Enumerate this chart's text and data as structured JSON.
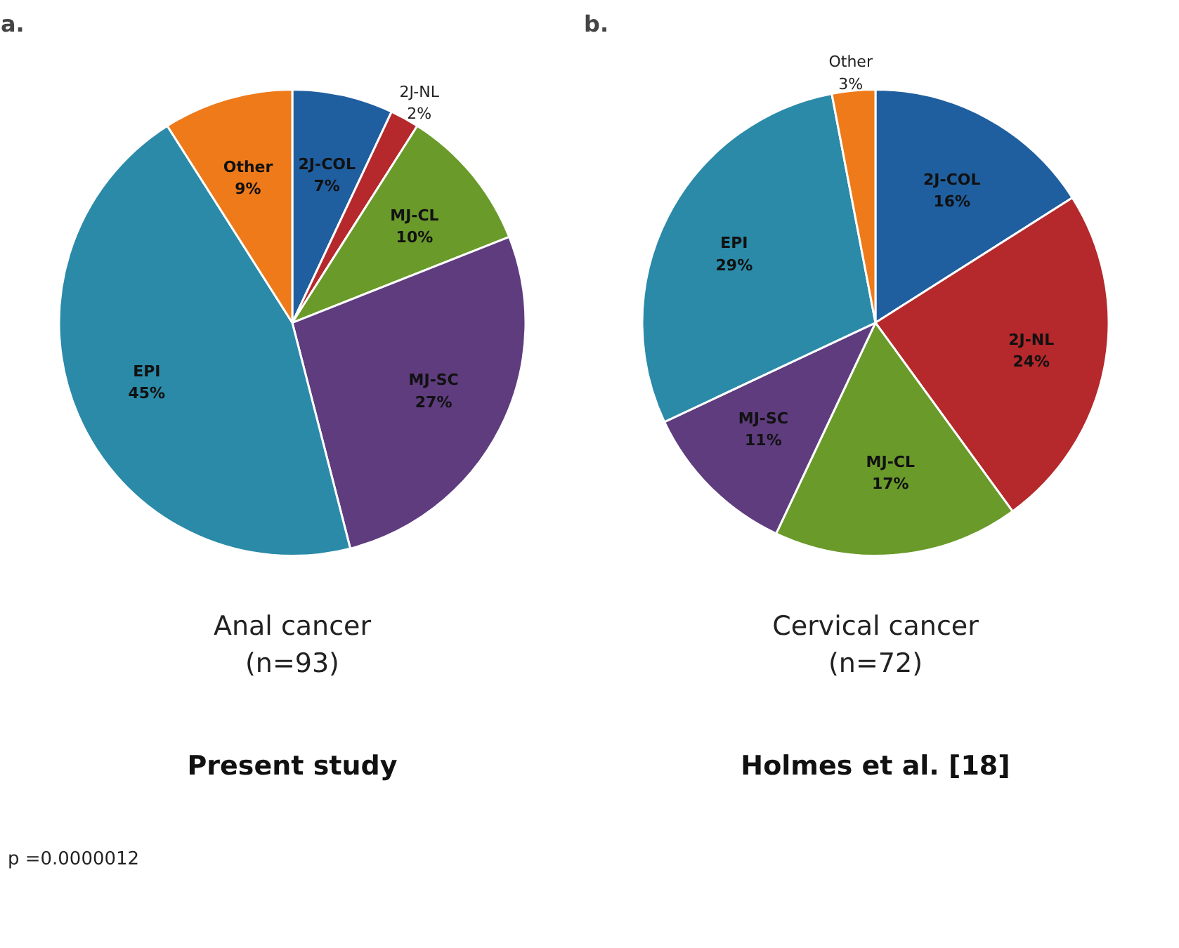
{
  "chart_data": [
    {
      "type": "pie",
      "title": "a.",
      "xlabel": "Anal cancer\n(n=93)",
      "subtitle": "Present study",
      "annotations": [
        "p =0.0000012"
      ],
      "categories": [
        "2J-COL",
        "2J-NL",
        "MJ-CL",
        "MJ-SC",
        "EPI",
        "Other"
      ],
      "values": [
        7,
        2,
        10,
        27,
        45,
        9
      ],
      "value_labels": [
        "7%",
        "2%",
        "10%",
        "27%",
        "45%",
        "9%"
      ],
      "colors": [
        "#1f5fa0",
        "#b5282b",
        "#6a9a2a",
        "#5e3c7e",
        "#2a8aa8",
        "#ef7a1a"
      ]
    },
    {
      "type": "pie",
      "title": "b.",
      "xlabel": "Cervical cancer\n(n=72)",
      "subtitle": "Holmes et al. [18]",
      "categories": [
        "2J-COL",
        "2J-NL",
        "MJ-CL",
        "MJ-SC",
        "EPI",
        "Other"
      ],
      "values": [
        16,
        24,
        17,
        11,
        29,
        3
      ],
      "value_labels": [
        "16%",
        "24%",
        "17%",
        "11%",
        "29%",
        "3%"
      ],
      "colors": [
        "#1f5fa0",
        "#b5282b",
        "#6a9a2a",
        "#5e3c7e",
        "#2a8aa8",
        "#ef7a1a"
      ]
    }
  ]
}
